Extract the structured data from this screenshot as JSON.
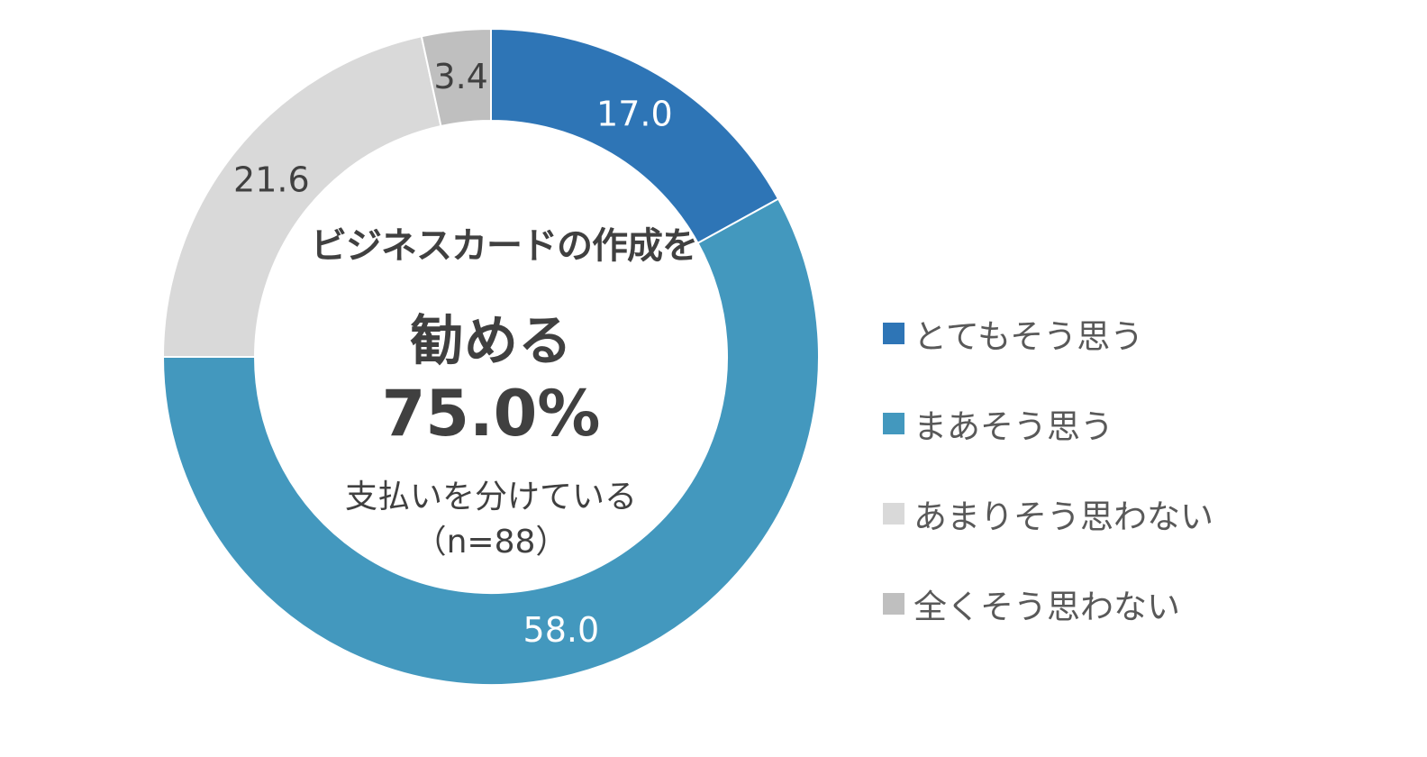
{
  "colors": {
    "strongly_agree": "#2E75B6",
    "somewhat_agree": "#4398BE",
    "somewhat_disagree": "#D9D9D9",
    "strongly_disagree": "#BFBFBF",
    "inner_label": "#FFFFFF",
    "outer_label": "#404040"
  },
  "center": {
    "subject": "ビジネスカードの作成を",
    "verb": "勧める",
    "value": "75.0%",
    "note": "支払いを分けている",
    "n": "（n=88）"
  },
  "chart_data": {
    "type": "pie",
    "style": "donut",
    "series": [
      {
        "name": "とてもそう思う",
        "value": 17.0,
        "color": "#2E75B6",
        "label": "17.0"
      },
      {
        "name": "まあそう思う",
        "value": 58.0,
        "color": "#4398BE",
        "label": "58.0"
      },
      {
        "name": "あまりそう思わない",
        "value": 21.6,
        "color": "#D9D9D9",
        "label": "21.6"
      },
      {
        "name": "全くそう思わない",
        "value": 3.4,
        "color": "#BFBFBF",
        "label": "3.4"
      }
    ],
    "legend_placement": "right"
  }
}
